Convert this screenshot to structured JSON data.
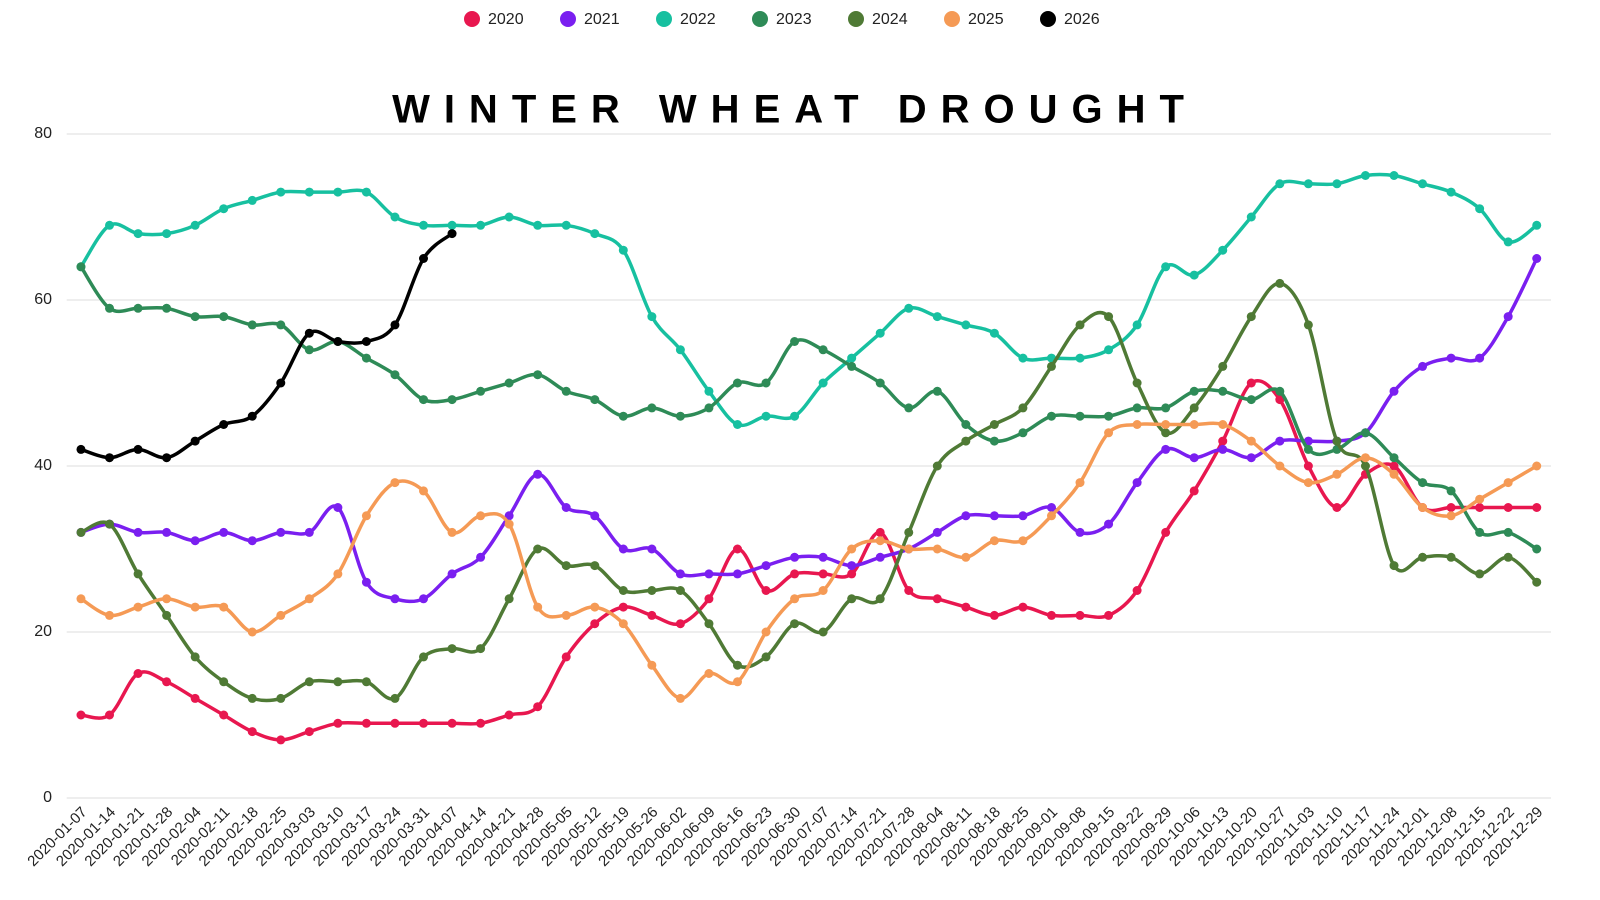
{
  "chart_data": {
    "type": "line",
    "title": "WINTER WHEAT DROUGHT",
    "categories": [
      "2020-01-07",
      "2020-01-14",
      "2020-01-21",
      "2020-01-28",
      "2020-02-04",
      "2020-02-11",
      "2020-02-18",
      "2020-02-25",
      "2020-03-03",
      "2020-03-10",
      "2020-03-17",
      "2020-03-24",
      "2020-03-31",
      "2020-04-07",
      "2020-04-14",
      "2020-04-21",
      "2020-04-28",
      "2020-05-05",
      "2020-05-12",
      "2020-05-19",
      "2020-05-26",
      "2020-06-02",
      "2020-06-09",
      "2020-06-16",
      "2020-06-23",
      "2020-06-30",
      "2020-07-07",
      "2020-07-14",
      "2020-07-21",
      "2020-07-28",
      "2020-08-04",
      "2020-08-11",
      "2020-08-18",
      "2020-08-25",
      "2020-09-01",
      "2020-09-08",
      "2020-09-15",
      "2020-09-22",
      "2020-09-29",
      "2020-10-06",
      "2020-10-13",
      "2020-10-20",
      "2020-10-27",
      "2020-11-03",
      "2020-11-10",
      "2020-11-17",
      "2020-11-24",
      "2020-12-01",
      "2020-12-08",
      "2020-12-15",
      "2020-12-22",
      "2020-12-29"
    ],
    "series": [
      {
        "name": "2020",
        "color": "#e8174f",
        "values": [
          10,
          10,
          15,
          14,
          12,
          10,
          8,
          7,
          8,
          9,
          9,
          9,
          9,
          9,
          9,
          10,
          11,
          17,
          21,
          23,
          22,
          21,
          24,
          30,
          25,
          27,
          27,
          27,
          32,
          25,
          24,
          23,
          22,
          23,
          22,
          22,
          22,
          25,
          32,
          37,
          43,
          50,
          48,
          40,
          35,
          39,
          40,
          35,
          35,
          35,
          35,
          35
        ]
      },
      {
        "name": "2021",
        "color": "#7a1ff0",
        "values": [
          32,
          33,
          32,
          32,
          31,
          32,
          31,
          32,
          32,
          35,
          26,
          24,
          24,
          27,
          29,
          34,
          39,
          35,
          34,
          30,
          30,
          27,
          27,
          27,
          28,
          29,
          29,
          28,
          29,
          30,
          32,
          34,
          34,
          34,
          35,
          32,
          33,
          38,
          42,
          41,
          42,
          41,
          43,
          43,
          43,
          44,
          49,
          52,
          53,
          53,
          58,
          65
        ]
      },
      {
        "name": "2022",
        "color": "#17c0a0",
        "values": [
          64,
          69,
          68,
          68,
          69,
          71,
          72,
          73,
          73,
          73,
          73,
          70,
          69,
          69,
          69,
          70,
          69,
          69,
          68,
          66,
          58,
          54,
          49,
          45,
          46,
          46,
          50,
          53,
          56,
          59,
          58,
          57,
          56,
          53,
          53,
          53,
          54,
          57,
          64,
          63,
          66,
          70,
          74,
          74,
          74,
          75,
          75,
          74,
          73,
          71,
          67,
          69
        ]
      },
      {
        "name": "2023",
        "color": "#2e8b57",
        "values": [
          64,
          59,
          59,
          59,
          58,
          58,
          57,
          57,
          54,
          55,
          53,
          51,
          48,
          48,
          49,
          50,
          51,
          49,
          48,
          46,
          47,
          46,
          47,
          50,
          50,
          55,
          54,
          52,
          50,
          47,
          49,
          45,
          43,
          44,
          46,
          46,
          46,
          47,
          47,
          49,
          49,
          48,
          49,
          42,
          42,
          44,
          41,
          38,
          37,
          32,
          32,
          30
        ]
      },
      {
        "name": "2024",
        "color": "#4f7a35",
        "values": [
          32,
          33,
          27,
          22,
          17,
          14,
          12,
          12,
          14,
          14,
          14,
          12,
          17,
          18,
          18,
          24,
          30,
          28,
          28,
          25,
          25,
          25,
          21,
          16,
          17,
          21,
          20,
          24,
          24,
          32,
          40,
          43,
          45,
          47,
          52,
          57,
          58,
          50,
          44,
          47,
          52,
          58,
          62,
          57,
          43,
          40,
          28,
          29,
          29,
          27,
          29,
          26
        ]
      },
      {
        "name": "2025",
        "color": "#f59a55",
        "values": [
          24,
          22,
          23,
          24,
          23,
          23,
          20,
          22,
          24,
          27,
          34,
          38,
          37,
          32,
          34,
          33,
          23,
          22,
          23,
          21,
          16,
          12,
          15,
          14,
          20,
          24,
          25,
          30,
          31,
          30,
          30,
          29,
          31,
          31,
          34,
          38,
          44,
          45,
          45,
          45,
          45,
          43,
          40,
          38,
          39,
          41,
          39,
          35,
          34,
          36,
          38,
          40
        ]
      },
      {
        "name": "2026",
        "color": "#000000",
        "values": [
          42,
          41,
          42,
          41,
          43,
          45,
          46,
          50,
          56,
          55,
          55,
          57,
          65,
          68,
          null,
          null,
          null,
          null,
          null,
          null,
          null,
          null,
          null,
          null,
          null,
          null,
          null,
          null,
          null,
          null,
          null,
          null,
          null,
          null,
          null,
          null,
          null,
          null,
          null,
          null,
          null,
          null,
          null,
          null,
          null,
          null,
          null,
          null,
          null,
          null,
          null,
          null
        ]
      }
    ],
    "ylim": [
      0,
      80
    ],
    "yticks": [
      0,
      20,
      40,
      60,
      80
    ],
    "grid": true,
    "legend": "top"
  }
}
